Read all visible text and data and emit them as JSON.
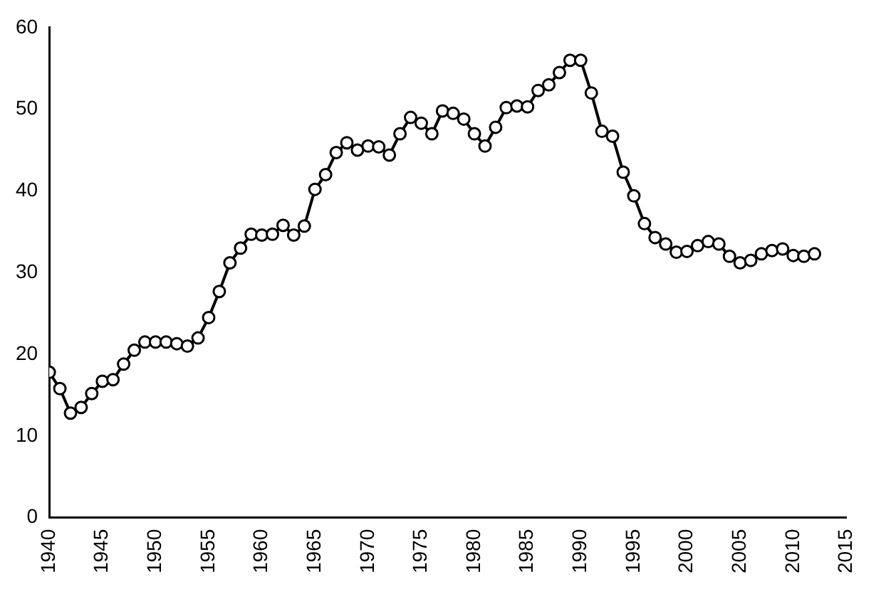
{
  "chart_data": {
    "type": "line",
    "x": [
      1940,
      1941,
      1942,
      1943,
      1944,
      1945,
      1946,
      1947,
      1948,
      1949,
      1950,
      1951,
      1952,
      1953,
      1954,
      1955,
      1956,
      1957,
      1958,
      1959,
      1960,
      1961,
      1962,
      1963,
      1964,
      1965,
      1966,
      1967,
      1968,
      1969,
      1970,
      1971,
      1972,
      1973,
      1974,
      1975,
      1976,
      1977,
      1978,
      1979,
      1980,
      1981,
      1982,
      1983,
      1984,
      1985,
      1986,
      1987,
      1988,
      1989,
      1990,
      1991,
      1992,
      1993,
      1994,
      1995,
      1996,
      1997,
      1998,
      1999,
      2000,
      2001,
      2002,
      2003,
      2004,
      2005,
      2006,
      2007,
      2008,
      2009,
      2010,
      2011,
      2012
    ],
    "series": [
      {
        "color": "#000000",
        "values": [
          17.8,
          15.8,
          12.8,
          13.5,
          15.2,
          16.7,
          16.9,
          18.8,
          20.5,
          21.5,
          21.5,
          21.5,
          21.3,
          21.0,
          22.0,
          24.5,
          27.7,
          31.2,
          33.0,
          34.7,
          34.6,
          34.7,
          35.8,
          34.6,
          35.7,
          40.2,
          42.0,
          44.7,
          45.9,
          45.0,
          45.5,
          45.4,
          44.4,
          47.0,
          49.0,
          48.3,
          47.0,
          49.8,
          49.5,
          48.8,
          47.0,
          45.5,
          47.8,
          50.2,
          50.4,
          50.3,
          52.3,
          53.0,
          54.5,
          56.0,
          56.0,
          52.0,
          47.3,
          46.7,
          42.3,
          39.4,
          36.0,
          34.3,
          33.5,
          32.5,
          32.6,
          33.3,
          33.8,
          33.5,
          32.0,
          31.2,
          31.5,
          32.3,
          32.7,
          32.9,
          32.1,
          32.0,
          32.3
        ]
      }
    ],
    "xlim": [
      1940,
      2015
    ],
    "xticks": [
      1940,
      1945,
      1950,
      1955,
      1960,
      1965,
      1970,
      1975,
      1980,
      1985,
      1990,
      1995,
      2000,
      2005,
      2010,
      2015
    ],
    "ylim": [
      0,
      60
    ],
    "yticks": [
      0,
      10,
      20,
      30,
      40,
      50,
      60
    ],
    "marker": "circle",
    "line_style": "solid",
    "grid": false,
    "legend": false
  }
}
